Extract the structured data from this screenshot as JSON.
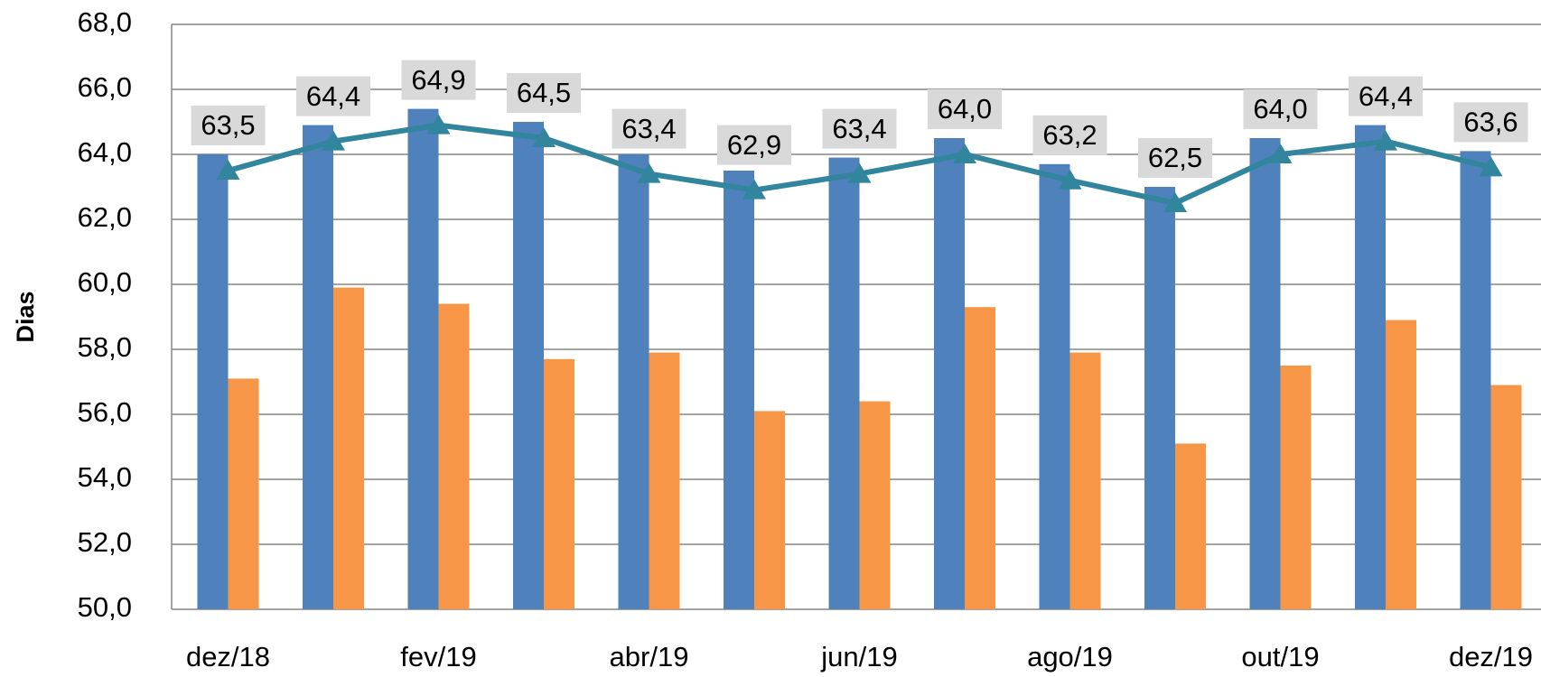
{
  "chart_data": {
    "type": "bar_line",
    "y_label": "Dias",
    "categories": [
      "dez/18",
      null,
      "fev/19",
      null,
      "abr/19",
      null,
      "jun/19",
      null,
      "ago/19",
      null,
      "out/19",
      null,
      "dez/19"
    ],
    "series": [
      {
        "type": "bar",
        "color": "#4f81bd",
        "values": [
          64.0,
          64.9,
          65.4,
          65.0,
          64.0,
          63.5,
          63.9,
          64.5,
          63.7,
          63.0,
          64.5,
          64.9,
          64.1
        ]
      },
      {
        "type": "bar",
        "color": "#f79646",
        "values": [
          57.1,
          59.9,
          59.4,
          57.7,
          57.9,
          56.1,
          56.4,
          59.3,
          57.9,
          55.1,
          57.5,
          58.9,
          56.9
        ]
      },
      {
        "type": "line",
        "color": "#31859c",
        "values": [
          63.5,
          64.4,
          64.9,
          64.5,
          63.4,
          62.9,
          63.4,
          64.0,
          63.2,
          62.5,
          64.0,
          64.4,
          63.6
        ],
        "value_labels": [
          "63,5",
          "64,4",
          "64,9",
          "64,5",
          "63,4",
          "62,9",
          "63,4",
          "64,0",
          "63,2",
          "62,5",
          "64,0",
          "64,4",
          "63,6"
        ]
      }
    ],
    "ylim": [
      50,
      68
    ],
    "yticks": [
      {
        "value": 50,
        "label": "50,0"
      },
      {
        "value": 52,
        "label": "52,0"
      },
      {
        "value": 54,
        "label": "54,0"
      },
      {
        "value": 56,
        "label": "56,0"
      },
      {
        "value": 58,
        "label": "58,0"
      },
      {
        "value": 60,
        "label": "60,0"
      },
      {
        "value": 62,
        "label": "62,0"
      },
      {
        "value": 64,
        "label": "64,0"
      },
      {
        "value": 66,
        "label": "66,0"
      },
      {
        "value": 68,
        "label": "68,0"
      }
    ],
    "grid": true
  }
}
